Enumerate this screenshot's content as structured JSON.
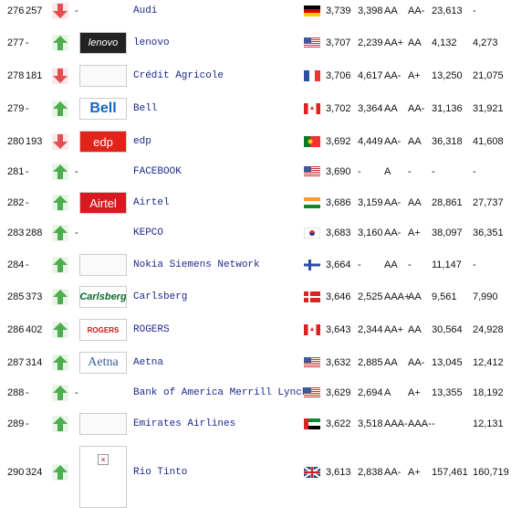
{
  "table": {
    "rows": [
      {
        "rank": "276",
        "prev": "257",
        "logo": "-",
        "name": "Audi",
        "value": "3,739",
        "prev_value": "3,398",
        "rating": "AA",
        "prev_rating": "AA-",
        "revenue": "23,613",
        "prev_revenue": "-"
      },
      {
        "rank": "277",
        "prev": "-",
        "logo": "lenovo",
        "name": "lenovo",
        "value": "3,707",
        "prev_value": "2,239",
        "rating": "AA+",
        "prev_rating": "AA",
        "revenue": "4,132",
        "prev_revenue": "4,273"
      },
      {
        "rank": "278",
        "prev": "181",
        "name": "Crédit Agricole",
        "value": "3,706",
        "prev_value": "4,617",
        "rating": "AA-",
        "prev_rating": "A+",
        "revenue": "13,250",
        "prev_revenue": "21,075"
      },
      {
        "rank": "279",
        "prev": "-",
        "logo": "Bell",
        "name": "Bell",
        "value": "3,702",
        "prev_value": "3,364",
        "rating": "AA",
        "prev_rating": "AA-",
        "revenue": "31,136",
        "prev_revenue": "31,921"
      },
      {
        "rank": "280",
        "prev": "193",
        "logo": "edp",
        "name": "edp",
        "value": "3,692",
        "prev_value": "4,449",
        "rating": "AA-",
        "prev_rating": "AA",
        "revenue": "36,318",
        "prev_revenue": "41,608"
      },
      {
        "rank": "281",
        "prev": "-",
        "logo": "-",
        "name": "FACEBOOK",
        "value": "3,690",
        "prev_value": "-",
        "rating": "A",
        "prev_rating": "-",
        "revenue": "-",
        "prev_revenue": "-"
      },
      {
        "rank": "282",
        "prev": "-",
        "logo": "Airtel",
        "name": "Airtel",
        "value": "3,686",
        "prev_value": "3,159",
        "rating": "AA-",
        "prev_rating": "AA",
        "revenue": "28,861",
        "prev_revenue": "27,737"
      },
      {
        "rank": "283",
        "prev": "288",
        "logo": "-",
        "name": "KEPCO",
        "value": "3,683",
        "prev_value": "3,160",
        "rating": "AA-",
        "prev_rating": "A+",
        "revenue": "38,097",
        "prev_revenue": "36,351"
      },
      {
        "rank": "284",
        "prev": "-",
        "name": "Nokia Siemens Network",
        "value": "3,664",
        "prev_value": "-",
        "rating": "AA",
        "prev_rating": "-",
        "revenue": "11,147",
        "prev_revenue": "-"
      },
      {
        "rank": "285",
        "prev": "373",
        "logo": "Carlsberg",
        "name": "Carlsberg",
        "value": "3,646",
        "prev_value": "2,525",
        "rating": "AAA+",
        "prev_rating": "AA",
        "revenue": "9,561",
        "prev_revenue": "7,990"
      },
      {
        "rank": "286",
        "prev": "402",
        "logo": "ROGERS",
        "name": "ROGERS",
        "value": "3,643",
        "prev_value": "2,344",
        "rating": "AA+",
        "prev_rating": "AA",
        "revenue": "30,564",
        "prev_revenue": "24,928"
      },
      {
        "rank": "287",
        "prev": "314",
        "logo": "Aetna",
        "name": "Aetna",
        "value": "3,632",
        "prev_value": "2,885",
        "rating": "AA",
        "prev_rating": "AA-",
        "revenue": "13,045",
        "prev_revenue": "12,412"
      },
      {
        "rank": "288",
        "prev": "-",
        "logo": "-",
        "name": "Bank of America Merrill Lynch",
        "value": "3,629",
        "prev_value": "2,694",
        "rating": "A",
        "prev_rating": "A+",
        "revenue": "13,355",
        "prev_revenue": "18,192"
      },
      {
        "rank": "289",
        "prev": "-",
        "name": "Emirates Airlines",
        "value": "3,622",
        "prev_value": "3,518",
        "rating": "AAA-",
        "prev_rating": "AAA-",
        "revenue": "-",
        "prev_revenue": "12,131"
      },
      {
        "rank": "290",
        "prev": "324",
        "name": "Rio Tinto",
        "value": "3,613",
        "prev_value": "2,838",
        "rating": "AA-",
        "prev_rating": "A+",
        "revenue": "157,461",
        "prev_revenue": "160,719"
      }
    ]
  }
}
